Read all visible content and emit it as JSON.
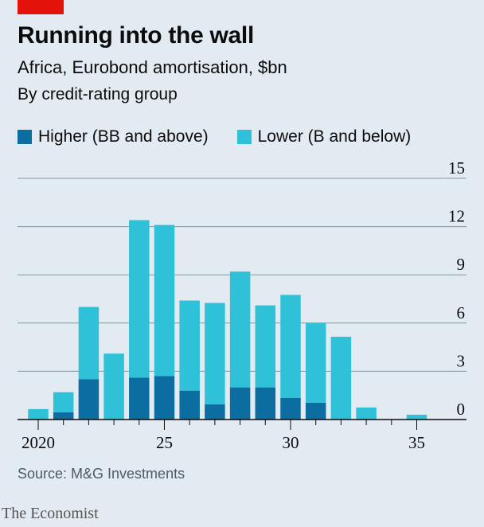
{
  "header": {
    "title": "Running into the wall",
    "subtitle": "Africa, Eurobond amortisation, $bn",
    "subtitle2": "By credit-rating group"
  },
  "footer": {
    "source": "Source: M&G Investments",
    "brand": "The Economist"
  },
  "colors": {
    "higher": "#0c6ea0",
    "lower": "#2fc1d7",
    "accent": "#e3120b",
    "grid": "#8a959d",
    "axis": "#0c0c0c"
  },
  "chart_data": {
    "type": "bar",
    "stacked": true,
    "x": [
      2020,
      2021,
      2022,
      2023,
      2024,
      2025,
      2026,
      2027,
      2028,
      2029,
      2030,
      2031,
      2032,
      2033,
      2034,
      2035
    ],
    "series": [
      {
        "name": "Higher (BB and above)",
        "values": [
          0,
          0.45,
          2.5,
          0,
          2.6,
          2.7,
          1.8,
          0.95,
          2.0,
          2.0,
          1.35,
          1.05,
          0,
          0,
          0,
          0
        ]
      },
      {
        "name": "Lower (B and below)",
        "values": [
          0.65,
          1.25,
          4.5,
          4.1,
          9.8,
          9.4,
          5.6,
          6.3,
          7.2,
          5.1,
          6.4,
          4.95,
          5.15,
          0.75,
          0,
          0.3
        ]
      }
    ],
    "x_ticks": [
      "2020",
      "25",
      "30",
      "35"
    ],
    "x_tick_values": [
      2020,
      2025,
      2030,
      2035
    ],
    "y_ticks": [
      "0",
      "3",
      "6",
      "9",
      "12",
      "15"
    ],
    "y_tick_values": [
      0,
      3,
      6,
      9,
      12,
      15
    ],
    "ylim": [
      0,
      15
    ],
    "xlabel": "",
    "ylabel": "",
    "grid": true,
    "legend_position": "top-left"
  }
}
